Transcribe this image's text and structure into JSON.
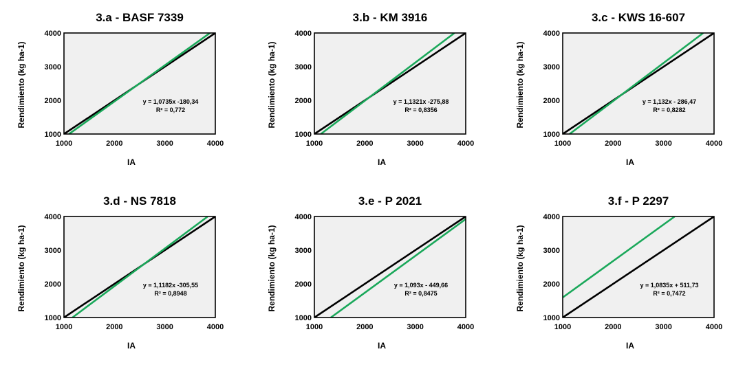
{
  "chart_data": [
    {
      "type": "line",
      "title": "3.a - BASF 7339",
      "xlabel": "IA",
      "ylabel": "Rendimiento (kg ha-1)",
      "xlim": [
        1000,
        4000
      ],
      "ylim": [
        1000,
        4000
      ],
      "xticks": [
        "1000",
        "2000",
        "3000",
        "4000"
      ],
      "yticks": [
        "1000",
        "2000",
        "3000",
        "4000"
      ],
      "equation": "y = 1,0735x -180,34",
      "r2": "R² = 0,772",
      "slope": 1.0735,
      "intercept": -180.34,
      "series": [
        {
          "color": "#000000",
          "x": [
            1000,
            4000
          ],
          "y": [
            1000,
            4000
          ]
        },
        {
          "color": "#1aa85a",
          "x": [
            1100,
            3900
          ],
          "y": [
            1000.51,
            4006.31
          ]
        }
      ]
    },
    {
      "type": "line",
      "title": "3.b - KM 3916",
      "xlabel": "IA",
      "ylabel": "Rendimiento (kg ha-1)",
      "xlim": [
        1000,
        4000
      ],
      "ylim": [
        1000,
        4000
      ],
      "xticks": [
        "1000",
        "2000",
        "3000",
        "4000"
      ],
      "yticks": [
        "1000",
        "2000",
        "3000",
        "4000"
      ],
      "equation": "y = 1,1321x -275,88",
      "r2": "R² = 0,8356",
      "slope": 1.1321,
      "intercept": -275.88,
      "series": [
        {
          "color": "#000000",
          "x": [
            1000,
            4000
          ],
          "y": [
            1000,
            4000
          ]
        },
        {
          "color": "#1aa85a",
          "x": [
            1127,
            3777
          ],
          "y": [
            1000,
            4000
          ]
        }
      ]
    },
    {
      "type": "line",
      "title": "3.c - KWS 16-607",
      "xlabel": "IA",
      "ylabel": "Rendimiento (kg ha-1)",
      "xlim": [
        1000,
        4000
      ],
      "ylim": [
        1000,
        4000
      ],
      "xticks": [
        "1000",
        "2000",
        "3000",
        "4000"
      ],
      "yticks": [
        "1000",
        "2000",
        "3000",
        "4000"
      ],
      "equation": "y = 1,132x - 286,47",
      "r2": "R² = 0,8282",
      "slope": 1.132,
      "intercept": -286.47,
      "series": [
        {
          "color": "#000000",
          "x": [
            1000,
            4000
          ],
          "y": [
            1000,
            4000
          ]
        },
        {
          "color": "#1aa85a",
          "x": [
            1136,
            3786
          ],
          "y": [
            1000,
            4000
          ]
        }
      ]
    },
    {
      "type": "line",
      "title": "3.d - NS 7818",
      "xlabel": "IA",
      "ylabel": "Rendimiento (kg ha-1)",
      "xlim": [
        1000,
        4000
      ],
      "ylim": [
        1000,
        4000
      ],
      "xticks": [
        "1000",
        "2000",
        "3000",
        "4000"
      ],
      "yticks": [
        "1000",
        "2000",
        "3000",
        "4000"
      ],
      "equation": "y = 1,1182x -305,55",
      "r2": "R² = 0,8948",
      "slope": 1.1182,
      "intercept": -305.55,
      "series": [
        {
          "color": "#000000",
          "x": [
            1000,
            4000
          ],
          "y": [
            1000,
            4000
          ]
        },
        {
          "color": "#1aa85a",
          "x": [
            1168,
            3850
          ],
          "y": [
            1000,
            4000
          ]
        }
      ]
    },
    {
      "type": "line",
      "title": "3.e - P 2021",
      "xlabel": "IA",
      "ylabel": "Rendimiento (kg ha-1)",
      "xlim": [
        1000,
        4000
      ],
      "ylim": [
        1000,
        4000
      ],
      "xticks": [
        "1000",
        "2000",
        "3000",
        "4000"
      ],
      "yticks": [
        "1000",
        "2000",
        "3000",
        "4000"
      ],
      "equation": "y = 1,093x - 449,66",
      "r2": "R² = 0,8475",
      "slope": 1.093,
      "intercept": -449.66,
      "series": [
        {
          "color": "#000000",
          "x": [
            1000,
            4000
          ],
          "y": [
            1000,
            4000
          ]
        },
        {
          "color": "#1aa85a",
          "x": [
            1326,
            4000
          ],
          "y": [
            1000,
            3922.34
          ]
        }
      ]
    },
    {
      "type": "line",
      "title": "3.f - P 2297",
      "xlabel": "IA",
      "ylabel": "Rendimiento (kg ha-1)",
      "xlim": [
        1000,
        4000
      ],
      "ylim": [
        1000,
        4000
      ],
      "xticks": [
        "1000",
        "2000",
        "3000",
        "4000"
      ],
      "yticks": [
        "1000",
        "2000",
        "3000",
        "4000"
      ],
      "equation": "y = 1,0835x + 511,73",
      "r2": "R² = 0,7472",
      "slope": 1.0835,
      "intercept": 511.73,
      "series": [
        {
          "color": "#000000",
          "x": [
            1000,
            4000
          ],
          "y": [
            1000,
            4000
          ]
        },
        {
          "color": "#1aa85a",
          "x": [
            1000,
            3220
          ],
          "y": [
            1595.23,
            4000
          ]
        }
      ]
    }
  ]
}
